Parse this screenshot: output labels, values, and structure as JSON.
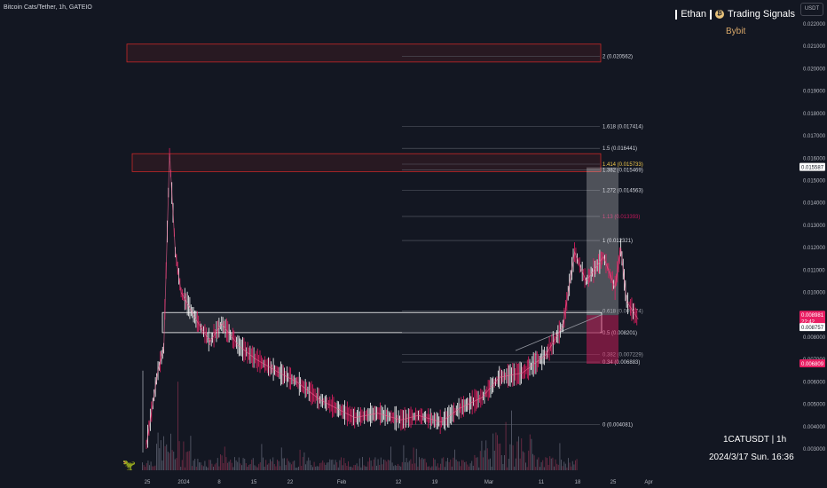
{
  "header": {
    "symbol_title": "Bitcoin Cats/Tether, 1h, GATEIO",
    "currency": "USDT",
    "brand_left": "Ethan",
    "brand_right": "Trading Signals",
    "exchange": "Bybit"
  },
  "footer": {
    "pair": "1CATUSDT | 1h",
    "datetime": "2024/3/17 Sun. 16:36"
  },
  "price_axis": {
    "ticks": [
      "0.022000",
      "0.021000",
      "0.020000",
      "0.019000",
      "0.018000",
      "0.017000",
      "0.016000",
      "0.015000",
      "0.014000",
      "0.013000",
      "0.012000",
      "0.011000",
      "0.010000",
      "0.009000",
      "0.008000",
      "0.007000",
      "0.006000",
      "0.005000",
      "0.004000",
      "0.003000"
    ],
    "labels": [
      {
        "text": "0.015587",
        "color": "#ffffff",
        "text_color": "#131722"
      },
      {
        "text": "0.008981",
        "color": "#e91e63",
        "text_color": "#ffffff"
      },
      {
        "text": "22:42",
        "color": "#e91e63",
        "text_color": "#ffffff"
      },
      {
        "text": "0.008757",
        "color": "#ffffff",
        "text_color": "#131722"
      },
      {
        "text": "0.006809",
        "color": "#e91e63",
        "text_color": "#ffffff"
      }
    ]
  },
  "time_axis": {
    "ticks": [
      "25",
      "2024",
      "8",
      "15",
      "22",
      "Feb",
      "12",
      "19",
      "Mar",
      "11",
      "18",
      "25",
      "Apr"
    ]
  },
  "fib_levels": [
    {
      "label": "2 (0.020562)",
      "price": 0.020562,
      "color": "#d1d4dc"
    },
    {
      "label": "1.618 (0.017414)",
      "price": 0.017414,
      "color": "#d1d4dc"
    },
    {
      "label": "1.5 (0.016441)",
      "price": 0.016441,
      "color": "#d1d4dc"
    },
    {
      "label": "1.414 (0.015733)",
      "price": 0.015733,
      "color": "#f2c94c"
    },
    {
      "label": "1.382 (0.015469)",
      "price": 0.015469,
      "color": "#d1d4dc"
    },
    {
      "label": "1.272 (0.014563)",
      "price": 0.014563,
      "color": "#d1d4dc"
    },
    {
      "label": "1.13 (0.013393)",
      "price": 0.013393,
      "color": "#c2185b"
    },
    {
      "label": "1 (0.012321)",
      "price": 0.012321,
      "color": "#d1d4dc"
    },
    {
      "label": "0.618 (0.009174)",
      "price": 0.009174,
      "color": "#9598a1"
    },
    {
      "label": "0.5 (0.008201)",
      "price": 0.008201,
      "color": "#d1d4dc"
    },
    {
      "label": "0.382 (0.007229)",
      "price": 0.007229,
      "color": "#9598a1"
    },
    {
      "label": "0.34 (0.006883)",
      "price": 0.006883,
      "color": "#d1d4dc"
    },
    {
      "label": "0 (0.004081)",
      "price": 0.004081,
      "color": "#d1d4dc"
    }
  ],
  "zones": [
    {
      "name": "resistance-zone-top",
      "price_high": 0.0211,
      "price_low": 0.0203,
      "border": "#c62828"
    },
    {
      "name": "resistance-zone-peak",
      "price_high": 0.0162,
      "price_low": 0.0154,
      "border": "#c62828"
    },
    {
      "name": "support-zone",
      "price_high": 0.0091,
      "price_low": 0.0082,
      "border": "#ffffff"
    }
  ],
  "chart_data": {
    "type": "line",
    "series": [
      {
        "x": [
          "Dec 24",
          "Dec 26",
          "Dec 27",
          "Dec 28",
          "Dec 29",
          "Dec 30",
          "Jan 1",
          "Jan 3",
          "Jan 5",
          "Jan 8",
          "Jan 11",
          "Jan 15",
          "Jan 18",
          "Jan 22",
          "Jan 25",
          "Jan 28",
          "Feb 1",
          "Feb 5",
          "Feb 8",
          "Feb 12",
          "Feb 15",
          "Feb 19",
          "Feb 22",
          "Feb 26",
          "Mar 1",
          "Mar 4",
          "Mar 6",
          "Mar 8",
          "Mar 11",
          "Mar 13",
          "Mar 14",
          "Mar 15",
          "Mar 17"
        ],
        "values": [
          0.0032,
          0.0065,
          0.0075,
          0.0162,
          0.0118,
          0.01,
          0.0086,
          0.0078,
          0.0086,
          0.0076,
          0.007,
          0.0064,
          0.006,
          0.0052,
          0.0048,
          0.0044,
          0.0046,
          0.0043,
          0.0045,
          0.0042,
          0.0048,
          0.0053,
          0.0062,
          0.0064,
          0.0072,
          0.0085,
          0.0118,
          0.0105,
          0.0116,
          0.0102,
          0.012,
          0.0096,
          0.0088
        ]
      }
    ],
    "ylim": [
      0.0025,
      0.0225
    ],
    "candle_color_up": "#ffffff",
    "candle_color_down": "#e91e63"
  }
}
